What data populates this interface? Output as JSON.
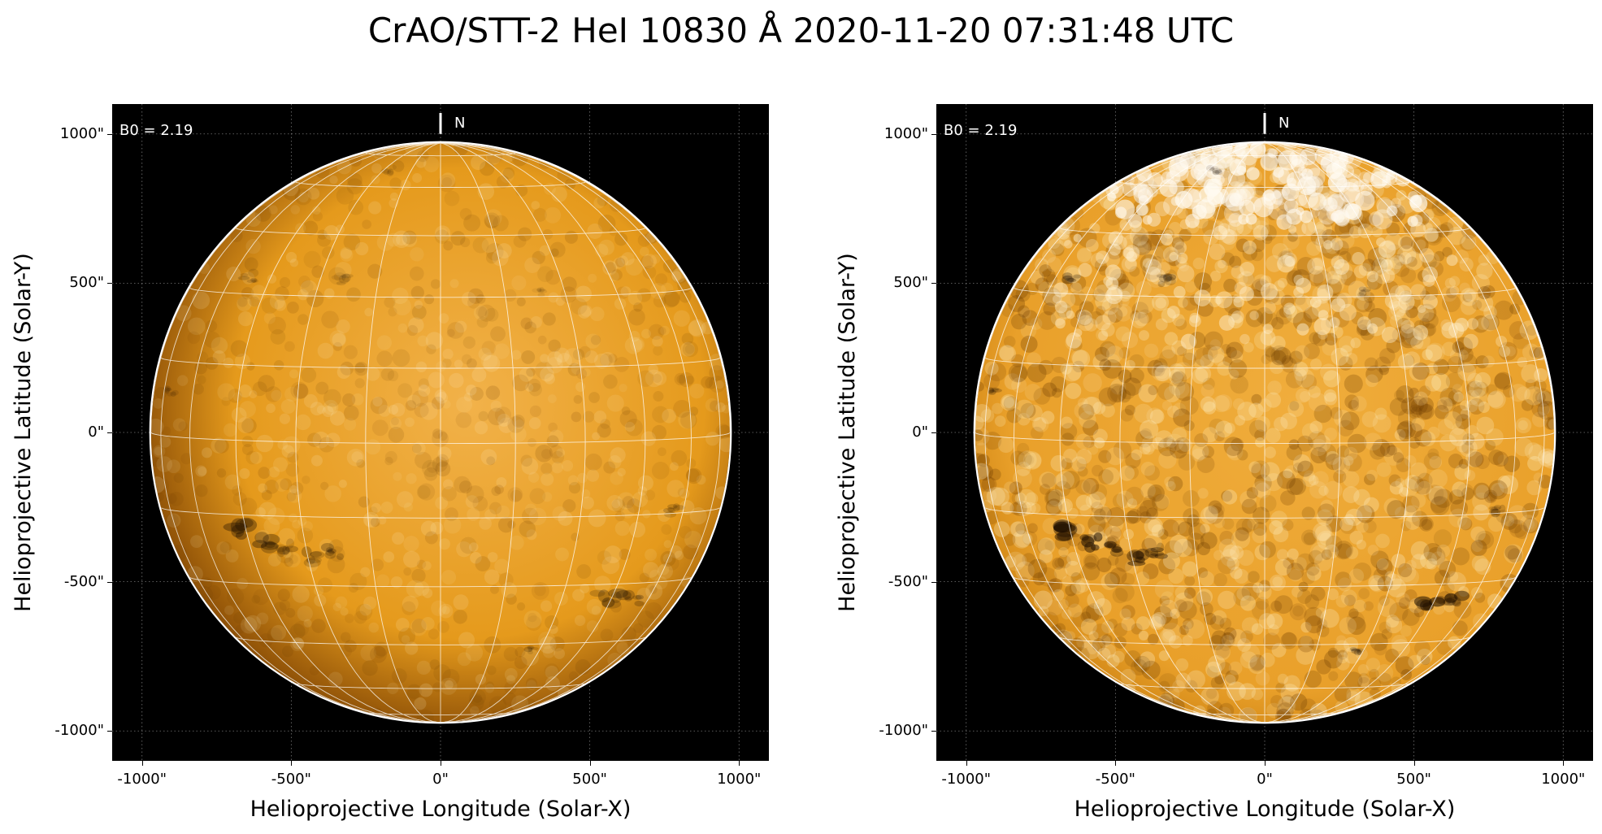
{
  "title": "CrAO/STT-2 HeI 10830 Å 2020-11-20 07:31:48 UTC",
  "colors": {
    "sun_base": "#e59a1c",
    "sun_light": "#f2b24a",
    "limb": "#8a4d06",
    "grid": "#ffffff",
    "background": "#000000"
  },
  "panels": [
    {
      "b0_label": "B0 = 2.19",
      "north_label": "N",
      "xlabel": "Helioprojective Longitude (Solar-X)",
      "ylabel": "Helioprojective Latitude (Solar-Y)",
      "variant": "smooth"
    },
    {
      "b0_label": "B0 = 2.19",
      "north_label": "N",
      "xlabel": "Helioprojective Longitude (Solar-X)",
      "ylabel": "Helioprojective Latitude (Solar-Y)",
      "variant": "enhanced"
    }
  ],
  "axes": {
    "xlim": [
      -1100,
      1100
    ],
    "ylim": [
      -1100,
      1100
    ],
    "x_ticks": [
      {
        "value": -1000,
        "label": "-1000\""
      },
      {
        "value": -500,
        "label": "-500\""
      },
      {
        "value": 0,
        "label": "0\""
      },
      {
        "value": 500,
        "label": "500\""
      },
      {
        "value": 1000,
        "label": "1000\""
      }
    ],
    "y_ticks": [
      {
        "value": 1000,
        "label": "1000\""
      },
      {
        "value": 500,
        "label": "500\""
      },
      {
        "value": 0,
        "label": "0\""
      },
      {
        "value": -500,
        "label": "-500\""
      },
      {
        "value": -1000,
        "label": "-1000\""
      }
    ],
    "solar_radius": 970
  }
}
